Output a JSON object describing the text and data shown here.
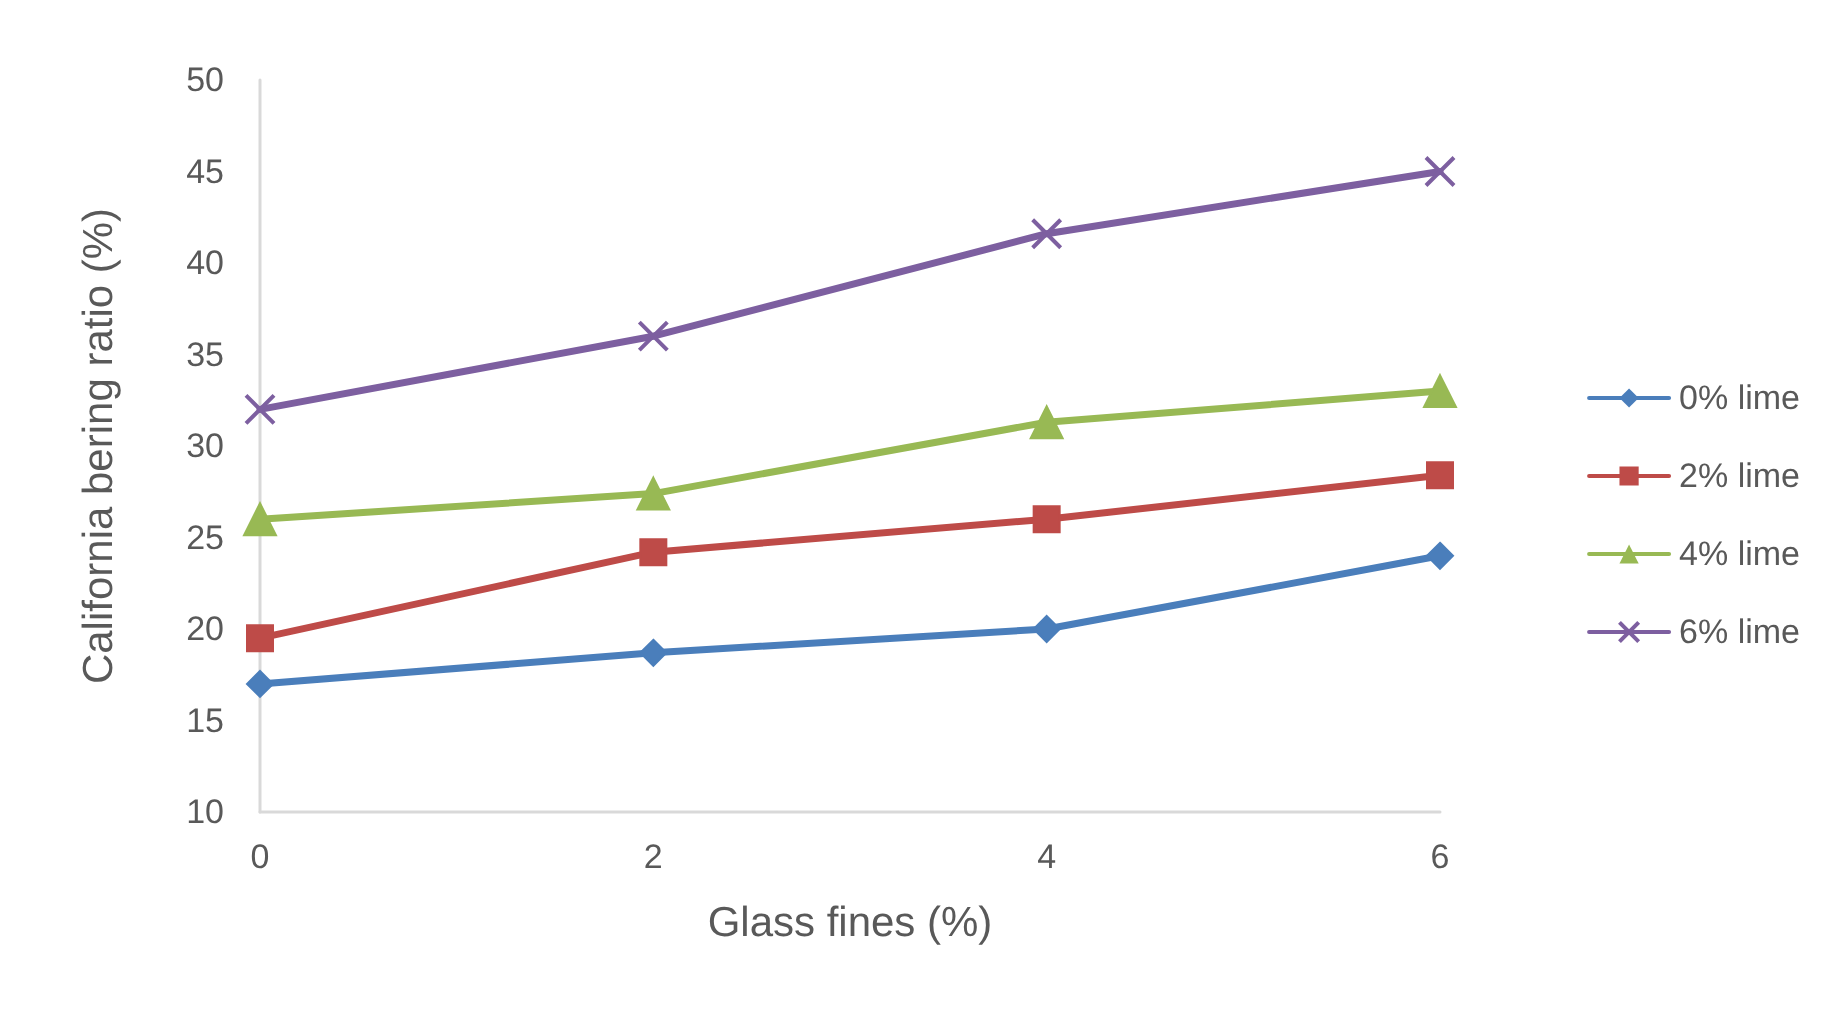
{
  "chart_data": {
    "type": "line",
    "xlabel": "Glass fines (%)",
    "ylabel": "California bering ratio (%)",
    "x": [
      0,
      2,
      4,
      6
    ],
    "xlim": [
      0,
      6
    ],
    "xticks": [
      0,
      2,
      4,
      6
    ],
    "ylim": [
      10,
      50
    ],
    "yticks": [
      10,
      15,
      20,
      25,
      30,
      35,
      40,
      45,
      50
    ],
    "grid": false,
    "legend": "right",
    "line_style": "solid",
    "series": [
      {
        "name": "0% lime",
        "color": "#4a7ebb",
        "marker": "diamond",
        "values": [
          17,
          18.7,
          20,
          24
        ]
      },
      {
        "name": "2% lime",
        "color": "#be4b48",
        "marker": "square",
        "values": [
          19.5,
          24.2,
          26,
          28.4
        ]
      },
      {
        "name": "4% lime",
        "color": "#98b954",
        "marker": "triangle",
        "values": [
          26,
          27.4,
          31.3,
          33
        ]
      },
      {
        "name": "6% lime",
        "color": "#7d5fa0",
        "marker": "cross",
        "values": [
          32,
          36,
          41.6,
          45
        ]
      }
    ]
  }
}
